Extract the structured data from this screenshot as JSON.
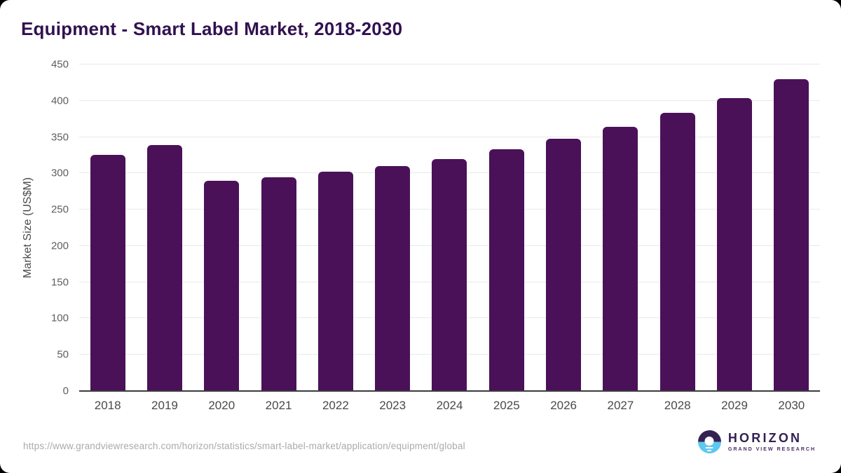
{
  "page": {
    "outer_background": "#000000",
    "card_background": "#ffffff"
  },
  "header": {
    "title": "Equipment - Smart Label Market, 2018-2030",
    "title_color": "#311150"
  },
  "chart_data": {
    "type": "bar",
    "title": "Equipment - Smart Label Market, 2018-2030",
    "categories": [
      "2018",
      "2019",
      "2020",
      "2021",
      "2022",
      "2023",
      "2024",
      "2025",
      "2026",
      "2027",
      "2028",
      "2029",
      "2030"
    ],
    "values": [
      325,
      339,
      290,
      295,
      302,
      310,
      320,
      333,
      348,
      364,
      383,
      404,
      430
    ],
    "xlabel": "",
    "ylabel": "Market Size (US$M)",
    "ylim": [
      0,
      450
    ],
    "ytick_step": 50,
    "grid": true,
    "legend": "none",
    "bar_color": "#4a1158",
    "gridline_color": "#e8e9ea",
    "axis_line_color": "#3a3b3c",
    "ytick_color": "#5d5e60",
    "xtick_color": "#48494b"
  },
  "footer": {
    "source_url": "https://www.grandviewresearch.com/horizon/statistics/smart-label-market/application/equipment/global",
    "logo": {
      "name": "HORIZON",
      "subtitle": "GRAND VIEW RESEARCH",
      "purple": "#342253",
      "blue": "#5fc8f0"
    }
  }
}
